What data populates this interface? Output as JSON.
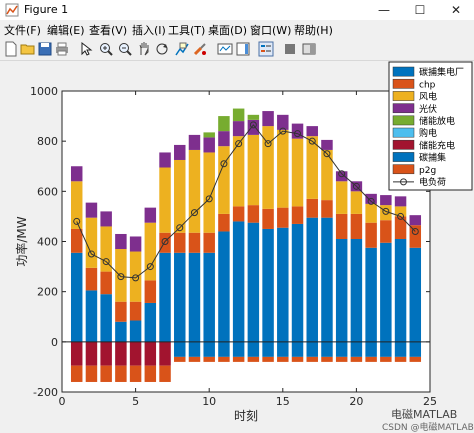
{
  "window": {
    "title": "Figure 1",
    "minimize": "—",
    "maximize": "☐",
    "close": "✕"
  },
  "menu": [
    "文件(F)",
    "编辑(E)",
    "查看(V)",
    "插入(I)",
    "工具(T)",
    "桌面(D)",
    "窗口(W)",
    "帮助(H)"
  ],
  "toolbar_icons": [
    "new-file-icon",
    "open-folder-icon",
    "save-icon",
    "print-icon",
    "pointer-icon",
    "zoom-in-icon",
    "zoom-out-icon",
    "pan-icon",
    "rotate-icon",
    "data-cursor-icon",
    "brush-icon",
    "link-plot-icon",
    "colorbar-icon",
    "legend-icon",
    "hide-plot-tools-icon",
    "show-plot-tools-icon"
  ],
  "watermark": {
    "line1": "电磁MATLAB",
    "line2": "CSDN @电磁MATLAB"
  },
  "colors": {
    "碳捕集电厂": "#0072BD",
    "chp": "#D95319",
    "风电": "#EDB120",
    "光伏": "#7E2F8E",
    "储能放电": "#77AC30",
    "购电": "#4DBEEE",
    "储能充电": "#A2142F",
    "碳捕集": "#0072BD",
    "p2g": "#D95319",
    "电负荷": "#333333"
  },
  "chart_data": {
    "type": "bar",
    "stacked": true,
    "xlabel": "时刻",
    "ylabel": "功率/MW",
    "xlim": [
      0,
      25
    ],
    "ylim": [
      -200,
      1000
    ],
    "xticks": [
      0,
      5,
      10,
      15,
      20,
      25
    ],
    "yticks": [
      -200,
      0,
      200,
      400,
      600,
      800,
      1000
    ],
    "grid": false,
    "legend_position": "top-right",
    "x": [
      1,
      2,
      3,
      4,
      5,
      6,
      7,
      8,
      9,
      10,
      11,
      12,
      13,
      14,
      15,
      16,
      17,
      18,
      19,
      20,
      21,
      22,
      23,
      24
    ],
    "positive_series": [
      {
        "name": "碳捕集电厂",
        "values": [
          355,
          205,
          190,
          80,
          85,
          155,
          355,
          355,
          355,
          355,
          440,
          480,
          475,
          450,
          455,
          470,
          495,
          495,
          410,
          410,
          375,
          395,
          410,
          375
        ]
      },
      {
        "name": "chp",
        "values": [
          95,
          90,
          90,
          80,
          75,
          90,
          80,
          80,
          80,
          80,
          70,
          60,
          70,
          80,
          80,
          70,
          75,
          70,
          100,
          100,
          100,
          90,
          90,
          90
        ]
      },
      {
        "name": "风电",
        "values": [
          190,
          200,
          180,
          210,
          200,
          230,
          260,
          290,
          330,
          320,
          270,
          280,
          280,
          330,
          310,
          270,
          250,
          200,
          130,
          90,
          75,
          60,
          40,
          0
        ]
      },
      {
        "name": "光伏",
        "values": [
          60,
          60,
          60,
          60,
          60,
          60,
          60,
          60,
          60,
          60,
          60,
          60,
          60,
          60,
          60,
          60,
          40,
          40,
          40,
          40,
          40,
          40,
          40,
          40
        ]
      },
      {
        "name": "储能放电",
        "values": [
          0,
          0,
          0,
          0,
          0,
          0,
          0,
          0,
          0,
          20,
          60,
          50,
          20,
          0,
          0,
          0,
          0,
          0,
          0,
          0,
          0,
          0,
          0,
          0
        ]
      },
      {
        "name": "购电",
        "values": [
          0,
          0,
          0,
          0,
          0,
          0,
          0,
          0,
          0,
          0,
          0,
          0,
          0,
          0,
          0,
          0,
          0,
          0,
          0,
          0,
          0,
          0,
          0,
          0
        ]
      }
    ],
    "negative_series": [
      {
        "name": "储能充电",
        "values": [
          -95,
          -95,
          -95,
          -95,
          -95,
          -95,
          -95,
          0,
          0,
          0,
          0,
          0,
          0,
          0,
          0,
          0,
          0,
          0,
          0,
          0,
          0,
          0,
          0,
          0
        ]
      },
      {
        "name": "碳捕集",
        "values": [
          0,
          0,
          0,
          0,
          0,
          0,
          0,
          -60,
          -60,
          -60,
          -60,
          -60,
          -60,
          -60,
          -60,
          -60,
          -60,
          -60,
          -60,
          -60,
          -60,
          -60,
          -60,
          -60
        ]
      },
      {
        "name": "p2g",
        "values": [
          -65,
          -65,
          -65,
          -65,
          -65,
          -65,
          -65,
          -20,
          -20,
          -20,
          -20,
          -20,
          -20,
          -20,
          -20,
          -20,
          -20,
          -20,
          -20,
          -20,
          -20,
          -20,
          -20,
          -20
        ]
      }
    ],
    "line_series": {
      "name": "电负荷",
      "values": [
        480,
        350,
        320,
        260,
        255,
        300,
        400,
        455,
        515,
        570,
        710,
        790,
        865,
        790,
        840,
        830,
        800,
        750,
        670,
        620,
        560,
        520,
        500,
        440
      ]
    }
  }
}
